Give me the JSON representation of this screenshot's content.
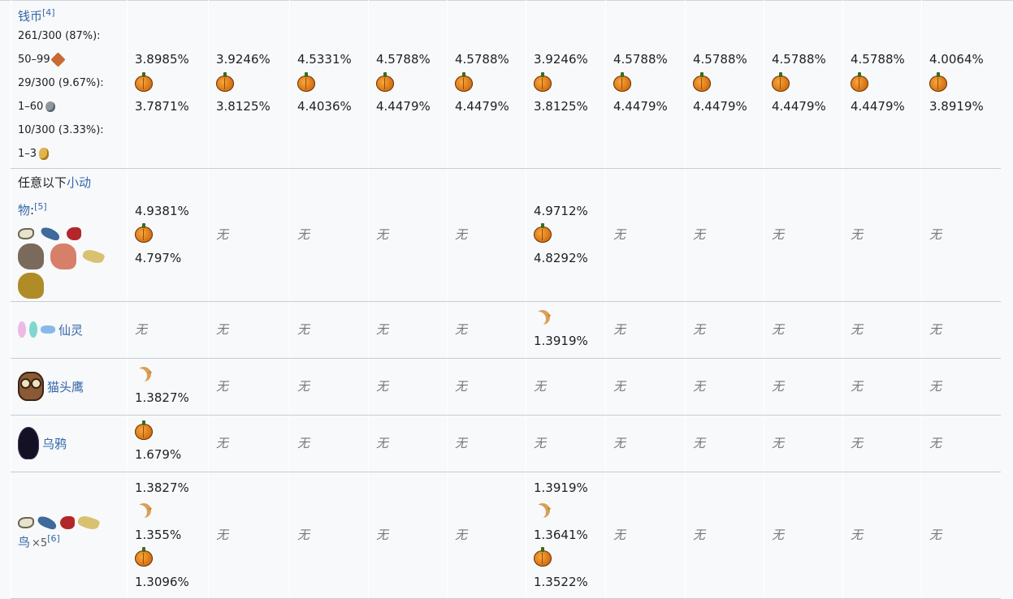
{
  "empty_glyph": "无",
  "icons": {
    "pumpkin": "pumpkin-icon",
    "moon": "moon-icon",
    "copper": "copper-coin-icon",
    "silver": "silver-coin-icon",
    "gold": "gold-coin-icon"
  },
  "rows": [
    {
      "id": "coins",
      "source": {
        "title": "钱币",
        "ref": "[4]",
        "lines": [
          {
            "text": "261/300 (87%):"
          },
          {
            "text": "50–99",
            "icon": "copper"
          },
          {
            "text": "29/300 (9.67%):"
          },
          {
            "text": "1–60",
            "icon": "silver"
          },
          {
            "text": "10/300 (3.33%):"
          },
          {
            "text": "1–3",
            "icon": "gold"
          }
        ]
      },
      "cells": [
        [
          {
            "t": "v",
            "v": "3.8985%"
          },
          {
            "t": "i",
            "i": "pumpkin"
          },
          {
            "t": "v",
            "v": "3.7871%"
          }
        ],
        [
          {
            "t": "v",
            "v": "3.9246%"
          },
          {
            "t": "i",
            "i": "pumpkin"
          },
          {
            "t": "v",
            "v": "3.8125%"
          }
        ],
        [
          {
            "t": "v",
            "v": "4.5331%"
          },
          {
            "t": "i",
            "i": "pumpkin"
          },
          {
            "t": "v",
            "v": "4.4036%"
          }
        ],
        [
          {
            "t": "v",
            "v": "4.5788%"
          },
          {
            "t": "i",
            "i": "pumpkin"
          },
          {
            "t": "v",
            "v": "4.4479%"
          }
        ],
        [
          {
            "t": "v",
            "v": "4.5788%"
          },
          {
            "t": "i",
            "i": "pumpkin"
          },
          {
            "t": "v",
            "v": "4.4479%"
          }
        ],
        [
          {
            "t": "v",
            "v": "3.9246%"
          },
          {
            "t": "i",
            "i": "pumpkin"
          },
          {
            "t": "v",
            "v": "3.8125%"
          }
        ],
        [
          {
            "t": "v",
            "v": "4.5788%"
          },
          {
            "t": "i",
            "i": "pumpkin"
          },
          {
            "t": "v",
            "v": "4.4479%"
          }
        ],
        [
          {
            "t": "v",
            "v": "4.5788%"
          },
          {
            "t": "i",
            "i": "pumpkin"
          },
          {
            "t": "v",
            "v": "4.4479%"
          }
        ],
        [
          {
            "t": "v",
            "v": "4.5788%"
          },
          {
            "t": "i",
            "i": "pumpkin"
          },
          {
            "t": "v",
            "v": "4.4479%"
          }
        ],
        [
          {
            "t": "v",
            "v": "4.5788%"
          },
          {
            "t": "i",
            "i": "pumpkin"
          },
          {
            "t": "v",
            "v": "4.4479%"
          }
        ],
        [
          {
            "t": "v",
            "v": "4.0064%"
          },
          {
            "t": "i",
            "i": "pumpkin"
          },
          {
            "t": "v",
            "v": "3.8919%"
          }
        ]
      ]
    },
    {
      "id": "critters",
      "source": {
        "prefix": "任意以下",
        "link1": "小动",
        "link2": "物",
        "colon": ":",
        "ref": "[5]",
        "critters": [
          "bird-white",
          "bird-blue",
          "bird-red",
          "squirrel-gray",
          "squirrel-pink",
          "bird-yellow",
          "squirrel-gold"
        ]
      },
      "cells": [
        [
          {
            "t": "v",
            "v": "4.9381%"
          },
          {
            "t": "i",
            "i": "pumpkin"
          },
          {
            "t": "v",
            "v": "4.797%"
          }
        ],
        [
          {
            "t": "e"
          }
        ],
        [
          {
            "t": "e"
          }
        ],
        [
          {
            "t": "e"
          }
        ],
        [
          {
            "t": "e"
          }
        ],
        [
          {
            "t": "v",
            "v": "4.9712%"
          },
          {
            "t": "i",
            "i": "pumpkin"
          },
          {
            "t": "v",
            "v": "4.8292%"
          }
        ],
        [
          {
            "t": "e"
          }
        ],
        [
          {
            "t": "e"
          }
        ],
        [
          {
            "t": "e"
          }
        ],
        [
          {
            "t": "e"
          }
        ],
        [
          {
            "t": "e"
          }
        ]
      ]
    },
    {
      "id": "fairy",
      "source": {
        "link": "仙灵",
        "critters": [
          "fairy-pink",
          "fairy-teal",
          "fairy-blue"
        ]
      },
      "cells": [
        [
          {
            "t": "e"
          }
        ],
        [
          {
            "t": "e"
          }
        ],
        [
          {
            "t": "e"
          }
        ],
        [
          {
            "t": "e"
          }
        ],
        [
          {
            "t": "e"
          }
        ],
        [
          {
            "t": "i",
            "i": "moon"
          },
          {
            "t": "v",
            "v": "1.3919%"
          }
        ],
        [
          {
            "t": "e"
          }
        ],
        [
          {
            "t": "e"
          }
        ],
        [
          {
            "t": "e"
          }
        ],
        [
          {
            "t": "e"
          }
        ],
        [
          {
            "t": "e"
          }
        ]
      ]
    },
    {
      "id": "owl",
      "source": {
        "link": "猫头鹰",
        "critters": [
          "owl"
        ]
      },
      "cells": [
        [
          {
            "t": "i",
            "i": "moon"
          },
          {
            "t": "v",
            "v": "1.3827%"
          }
        ],
        [
          {
            "t": "e"
          }
        ],
        [
          {
            "t": "e"
          }
        ],
        [
          {
            "t": "e"
          }
        ],
        [
          {
            "t": "e"
          }
        ],
        [
          {
            "t": "e"
          }
        ],
        [
          {
            "t": "e"
          }
        ],
        [
          {
            "t": "e"
          }
        ],
        [
          {
            "t": "e"
          }
        ],
        [
          {
            "t": "e"
          }
        ],
        [
          {
            "t": "e"
          }
        ]
      ]
    },
    {
      "id": "raven",
      "source": {
        "link": "乌鸦",
        "critters": [
          "raven"
        ]
      },
      "cells": [
        [
          {
            "t": "i",
            "i": "pumpkin"
          },
          {
            "t": "v",
            "v": "1.679%"
          }
        ],
        [
          {
            "t": "e"
          }
        ],
        [
          {
            "t": "e"
          }
        ],
        [
          {
            "t": "e"
          }
        ],
        [
          {
            "t": "e"
          }
        ],
        [
          {
            "t": "e"
          }
        ],
        [
          {
            "t": "e"
          }
        ],
        [
          {
            "t": "e"
          }
        ],
        [
          {
            "t": "e"
          }
        ],
        [
          {
            "t": "e"
          }
        ],
        [
          {
            "t": "e"
          }
        ]
      ]
    },
    {
      "id": "birds",
      "source": {
        "link": "鸟",
        "mult": "×5",
        "ref": "[6]",
        "critters": [
          "bird-white",
          "bird-blue",
          "bird-red",
          "bird-yellow"
        ]
      },
      "cells": [
        [
          {
            "t": "v",
            "v": "1.3827%"
          },
          {
            "t": "i",
            "i": "moon"
          },
          {
            "t": "v",
            "v": "1.355%"
          },
          {
            "t": "i",
            "i": "pumpkin"
          },
          {
            "t": "v",
            "v": "1.3096%"
          }
        ],
        [
          {
            "t": "e"
          }
        ],
        [
          {
            "t": "e"
          }
        ],
        [
          {
            "t": "e"
          }
        ],
        [
          {
            "t": "e"
          }
        ],
        [
          {
            "t": "v",
            "v": "1.3919%"
          },
          {
            "t": "i",
            "i": "moon"
          },
          {
            "t": "v",
            "v": "1.3641%"
          },
          {
            "t": "i",
            "i": "pumpkin"
          },
          {
            "t": "v",
            "v": "1.3522%"
          }
        ],
        [
          {
            "t": "e"
          }
        ],
        [
          {
            "t": "e"
          }
        ],
        [
          {
            "t": "e"
          }
        ],
        [
          {
            "t": "e"
          }
        ],
        [
          {
            "t": "e"
          }
        ]
      ]
    }
  ]
}
